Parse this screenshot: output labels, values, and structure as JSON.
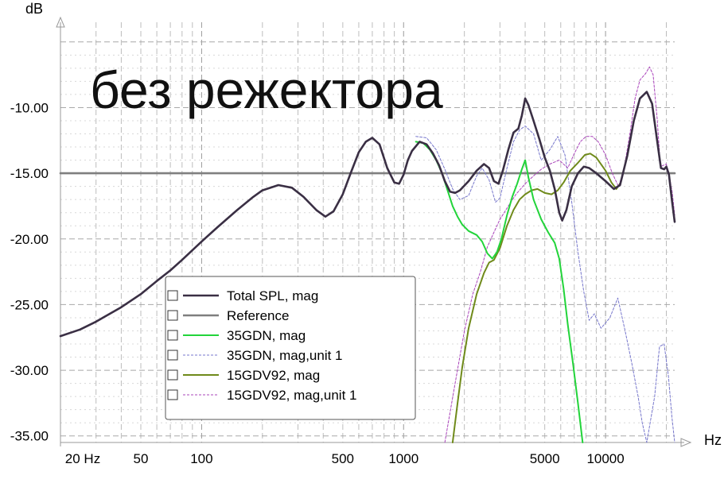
{
  "chart_data": {
    "type": "line",
    "title": "без режектора",
    "xlabel": "Hz",
    "ylabel": "dB",
    "x_scale": "log",
    "xlim": [
      20,
      22000
    ],
    "ylim": [
      -35.5,
      -3.5
    ],
    "grid": true,
    "legend_position": "bottom-center",
    "x_tick_labels": [
      {
        "value": 20,
        "label": "20 Hz"
      },
      {
        "value": 50,
        "label": "50"
      },
      {
        "value": 100,
        "label": "100"
      },
      {
        "value": 500,
        "label": "500"
      },
      {
        "value": 1000,
        "label": "1000"
      },
      {
        "value": 5000,
        "label": "5000"
      },
      {
        "value": 10000,
        "label": "10000"
      }
    ],
    "y_tick_labels": [
      {
        "value": -10,
        "label": "-10.00"
      },
      {
        "value": -15,
        "label": "-15.00"
      },
      {
        "value": -20,
        "label": "-20.00"
      },
      {
        "value": -25,
        "label": "-25.00"
      },
      {
        "value": -30,
        "label": "-30.00"
      },
      {
        "value": -35,
        "label": "-35.00"
      }
    ],
    "series": [
      {
        "name": "Total SPL, mag",
        "color": "#3a2f44",
        "style": "solid",
        "width": 2.6,
        "points": [
          [
            20,
            -27.4
          ],
          [
            25,
            -26.9
          ],
          [
            30,
            -26.3
          ],
          [
            40,
            -25.2
          ],
          [
            50,
            -24.2
          ],
          [
            60,
            -23.2
          ],
          [
            70,
            -22.4
          ],
          [
            80,
            -21.6
          ],
          [
            100,
            -20.2
          ],
          [
            120,
            -19.1
          ],
          [
            150,
            -17.8
          ],
          [
            180,
            -16.8
          ],
          [
            200,
            -16.3
          ],
          [
            240,
            -15.9
          ],
          [
            280,
            -16.1
          ],
          [
            320,
            -16.8
          ],
          [
            370,
            -17.8
          ],
          [
            410,
            -18.3
          ],
          [
            450,
            -17.9
          ],
          [
            500,
            -16.6
          ],
          [
            550,
            -14.9
          ],
          [
            600,
            -13.4
          ],
          [
            650,
            -12.6
          ],
          [
            700,
            -12.3
          ],
          [
            760,
            -12.8
          ],
          [
            830,
            -14.6
          ],
          [
            900,
            -15.7
          ],
          [
            950,
            -15.8
          ],
          [
            1000,
            -15.1
          ],
          [
            1050,
            -14.0
          ],
          [
            1100,
            -13.3
          ],
          [
            1200,
            -12.6
          ],
          [
            1300,
            -12.8
          ],
          [
            1400,
            -13.5
          ],
          [
            1500,
            -14.4
          ],
          [
            1600,
            -15.6
          ],
          [
            1700,
            -16.4
          ],
          [
            1800,
            -16.5
          ],
          [
            1900,
            -16.3
          ],
          [
            2100,
            -15.6
          ],
          [
            2300,
            -14.8
          ],
          [
            2500,
            -14.3
          ],
          [
            2650,
            -14.6
          ],
          [
            2800,
            -15.6
          ],
          [
            2950,
            -15.8
          ],
          [
            3100,
            -14.8
          ],
          [
            3300,
            -13.2
          ],
          [
            3500,
            -11.9
          ],
          [
            3700,
            -11.6
          ],
          [
            3850,
            -10.6
          ],
          [
            4000,
            -9.3
          ],
          [
            4150,
            -9.8
          ],
          [
            4400,
            -11.0
          ],
          [
            4700,
            -12.4
          ],
          [
            5000,
            -13.8
          ],
          [
            5300,
            -14.8
          ],
          [
            5600,
            -16.2
          ],
          [
            5900,
            -18.0
          ],
          [
            6100,
            -18.6
          ],
          [
            6400,
            -17.8
          ],
          [
            6800,
            -16.0
          ],
          [
            7300,
            -15.0
          ],
          [
            7800,
            -14.5
          ],
          [
            8300,
            -14.6
          ],
          [
            9000,
            -15.0
          ],
          [
            10000,
            -15.6
          ],
          [
            11000,
            -16.2
          ],
          [
            11800,
            -15.9
          ],
          [
            12800,
            -13.7
          ],
          [
            13800,
            -11.0
          ],
          [
            14800,
            -9.3
          ],
          [
            16000,
            -8.8
          ],
          [
            17000,
            -9.7
          ],
          [
            18000,
            -12.5
          ],
          [
            18800,
            -14.6
          ],
          [
            19500,
            -14.7
          ],
          [
            20000,
            -14.5
          ],
          [
            20600,
            -15.1
          ],
          [
            21300,
            -17.0
          ],
          [
            22000,
            -18.7
          ]
        ]
      },
      {
        "name": "Reference",
        "color": "#7f7f7f",
        "style": "solid",
        "width": 2.6,
        "points": [
          [
            20,
            -15.0
          ],
          [
            22000,
            -15.0
          ]
        ]
      },
      {
        "name": "35GDN, mag",
        "color": "#22d43a",
        "style": "solid",
        "width": 2.0,
        "points": [
          [
            1150,
            -12.6
          ],
          [
            1250,
            -12.7
          ],
          [
            1350,
            -13.2
          ],
          [
            1450,
            -14.0
          ],
          [
            1550,
            -15.0
          ],
          [
            1650,
            -16.3
          ],
          [
            1750,
            -17.5
          ],
          [
            1850,
            -18.3
          ],
          [
            1950,
            -18.9
          ],
          [
            2100,
            -19.4
          ],
          [
            2300,
            -19.7
          ],
          [
            2450,
            -20.2
          ],
          [
            2600,
            -21.1
          ],
          [
            2750,
            -21.5
          ],
          [
            2900,
            -21.0
          ],
          [
            3050,
            -20.0
          ],
          [
            3250,
            -18.2
          ],
          [
            3450,
            -16.8
          ],
          [
            3650,
            -15.8
          ],
          [
            3850,
            -14.7
          ],
          [
            4000,
            -14.0
          ],
          [
            4150,
            -15.3
          ],
          [
            4400,
            -17.0
          ],
          [
            4800,
            -18.5
          ],
          [
            5200,
            -19.5
          ],
          [
            5600,
            -20.3
          ],
          [
            5900,
            -21.5
          ],
          [
            6200,
            -23.8
          ],
          [
            6500,
            -26.5
          ],
          [
            6900,
            -29.5
          ],
          [
            7300,
            -32.5
          ],
          [
            7700,
            -35.5
          ]
        ]
      },
      {
        "name": "35GDN, mag,unit 1",
        "color": "#7777cc",
        "style": "dashed",
        "width": 1.0,
        "points": [
          [
            1150,
            -12.2
          ],
          [
            1300,
            -12.3
          ],
          [
            1450,
            -13.2
          ],
          [
            1600,
            -14.7
          ],
          [
            1750,
            -16.2
          ],
          [
            1900,
            -17.0
          ],
          [
            2100,
            -16.7
          ],
          [
            2300,
            -15.2
          ],
          [
            2450,
            -14.6
          ],
          [
            2650,
            -15.5
          ],
          [
            2850,
            -17.2
          ],
          [
            3000,
            -16.9
          ],
          [
            3250,
            -14.6
          ],
          [
            3500,
            -12.6
          ],
          [
            3750,
            -11.7
          ],
          [
            4000,
            -11.4
          ],
          [
            4400,
            -12.0
          ],
          [
            4800,
            -14.0
          ],
          [
            5300,
            -13.2
          ],
          [
            5800,
            -12.2
          ],
          [
            6300,
            -13.6
          ],
          [
            6800,
            -17.2
          ],
          [
            7300,
            -21.0
          ],
          [
            7800,
            -24.0
          ],
          [
            8300,
            -26.2
          ],
          [
            8800,
            -25.7
          ],
          [
            9500,
            -26.8
          ],
          [
            10500,
            -26.0
          ],
          [
            11500,
            -24.5
          ],
          [
            12500,
            -27.0
          ],
          [
            13500,
            -29.5
          ],
          [
            14500,
            -32.0
          ],
          [
            15200,
            -34.0
          ],
          [
            16000,
            -35.5
          ],
          [
            17500,
            -32.0
          ],
          [
            18500,
            -28.2
          ],
          [
            19500,
            -28.0
          ],
          [
            20500,
            -30.5
          ],
          [
            21300,
            -33.5
          ],
          [
            22000,
            -35.5
          ]
        ]
      },
      {
        "name": "15GDV92, mag",
        "color": "#6f8a1a",
        "style": "solid",
        "width": 2.0,
        "points": [
          [
            1750,
            -35.5
          ],
          [
            1850,
            -32.5
          ],
          [
            1950,
            -29.8
          ],
          [
            2100,
            -26.8
          ],
          [
            2300,
            -24.2
          ],
          [
            2500,
            -22.6
          ],
          [
            2650,
            -21.8
          ],
          [
            2800,
            -21.6
          ],
          [
            3000,
            -20.7
          ],
          [
            3250,
            -19.0
          ],
          [
            3500,
            -17.8
          ],
          [
            3750,
            -17.0
          ],
          [
            4000,
            -16.6
          ],
          [
            4300,
            -16.3
          ],
          [
            4600,
            -16.2
          ],
          [
            5000,
            -16.5
          ],
          [
            5400,
            -16.6
          ],
          [
            5800,
            -16.3
          ],
          [
            6200,
            -15.7
          ],
          [
            6700,
            -14.8
          ],
          [
            7300,
            -14.2
          ],
          [
            7900,
            -13.6
          ],
          [
            8400,
            -13.5
          ],
          [
            9000,
            -13.8
          ],
          [
            10000,
            -14.8
          ],
          [
            10700,
            -15.7
          ],
          [
            11300,
            -16.2
          ],
          [
            11800,
            -15.8
          ]
        ]
      },
      {
        "name": "15GDV92, mag,unit 1",
        "color": "#aa44bb",
        "style": "dashed",
        "width": 1.0,
        "points": [
          [
            1600,
            -35.5
          ],
          [
            1800,
            -31.0
          ],
          [
            2000,
            -27.0
          ],
          [
            2200,
            -24.2
          ],
          [
            2400,
            -22.5
          ],
          [
            2600,
            -20.6
          ],
          [
            2800,
            -19.5
          ],
          [
            3000,
            -18.5
          ],
          [
            3300,
            -17.5
          ],
          [
            3600,
            -16.6
          ],
          [
            4000,
            -15.8
          ],
          [
            4400,
            -15.2
          ],
          [
            4800,
            -14.7
          ],
          [
            5300,
            -14.3
          ],
          [
            5900,
            -14.0
          ],
          [
            6500,
            -14.6
          ],
          [
            7000,
            -13.5
          ],
          [
            7500,
            -12.6
          ],
          [
            8000,
            -12.2
          ],
          [
            8600,
            -12.2
          ],
          [
            9200,
            -12.6
          ],
          [
            10000,
            -13.6
          ],
          [
            10800,
            -15.0
          ],
          [
            11600,
            -16.0
          ],
          [
            12300,
            -14.8
          ],
          [
            13200,
            -12.0
          ],
          [
            14000,
            -9.3
          ],
          [
            14800,
            -7.9
          ],
          [
            15800,
            -7.4
          ],
          [
            16500,
            -6.9
          ],
          [
            17200,
            -7.5
          ],
          [
            18000,
            -10.8
          ],
          [
            18700,
            -14.5
          ],
          [
            19300,
            -14.4
          ],
          [
            20000,
            -14.3
          ],
          [
            20700,
            -15.2
          ],
          [
            21400,
            -16.5
          ],
          [
            22000,
            -18.2
          ]
        ]
      }
    ]
  }
}
